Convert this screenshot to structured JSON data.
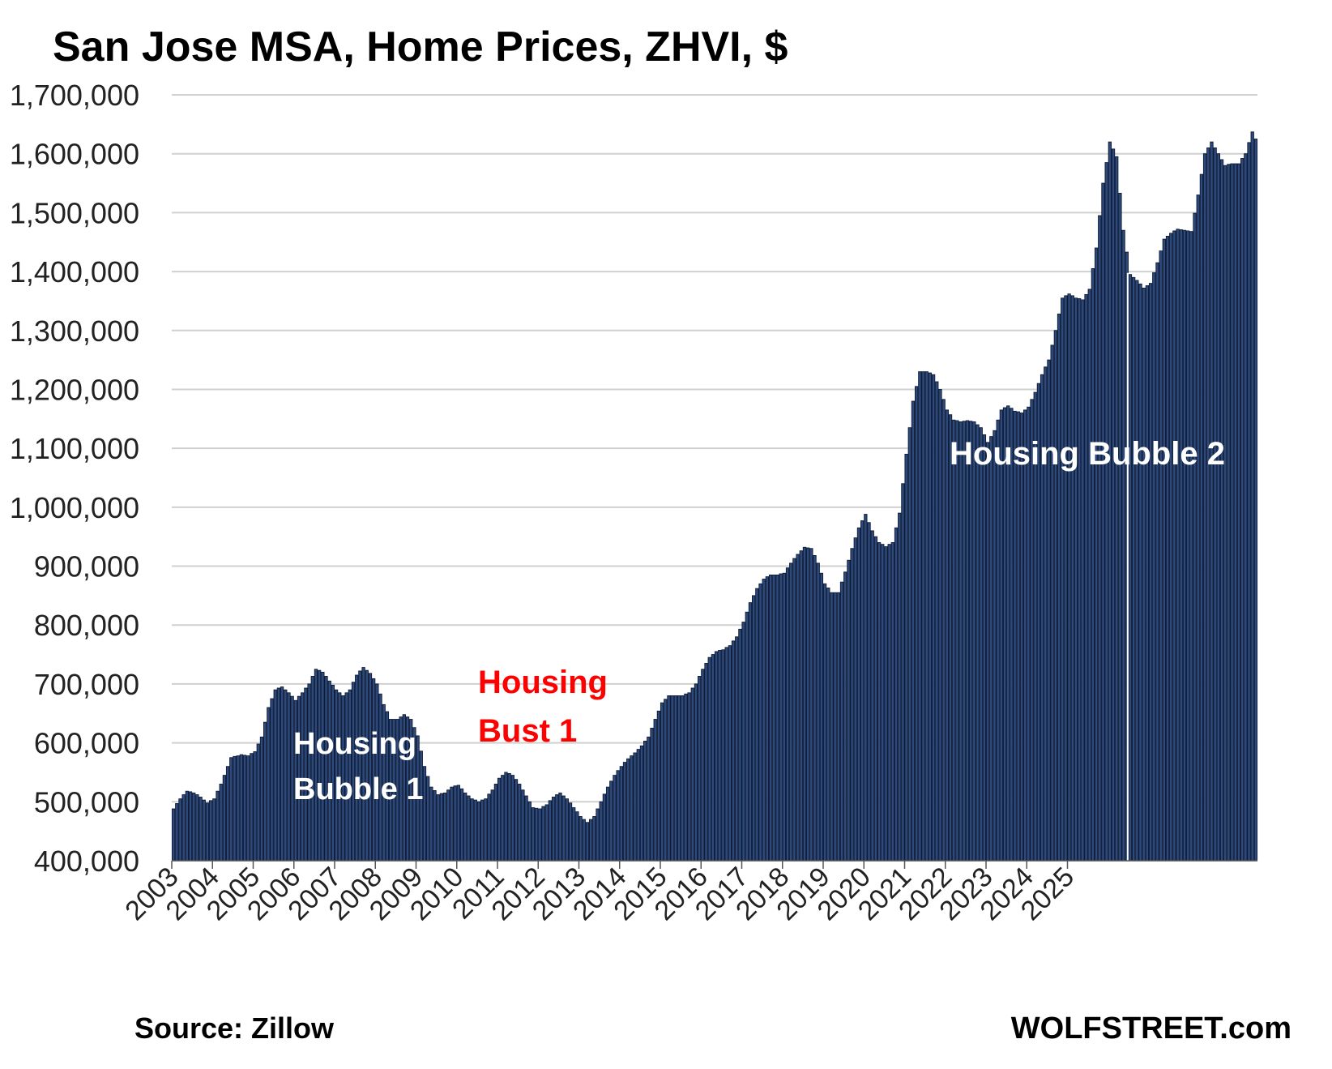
{
  "title": "San Jose MSA, Home Prices, ZHVI, $",
  "source": "Source: Zillow",
  "brand": "WOLFSTREET.com",
  "colors": {
    "bar_fill": "#2E4A7D",
    "bar_stroke": "#0d1a33",
    "grid": "#d0d0d0",
    "annotation_white": "#ffffff",
    "annotation_red": "#ff0000"
  },
  "chart_data": {
    "type": "bar",
    "title": "San Jose MSA, Home Prices, ZHVI, $",
    "frequency": "monthly",
    "start": "2003-01",
    "xlabel": "",
    "ylabel": "",
    "ylim": [
      400000,
      1700000
    ],
    "yticks": [
      "400,000",
      "500,000",
      "600,000",
      "700,000",
      "800,000",
      "900,000",
      "1,000,000",
      "1,100,000",
      "1,200,000",
      "1,300,000",
      "1,400,000",
      "1,500,000",
      "1,600,000",
      "1,700,000"
    ],
    "xticks": [
      "2003",
      "2004",
      "2005",
      "2006",
      "2007",
      "2008",
      "2009",
      "2010",
      "2011",
      "2012",
      "2013",
      "2014",
      "2015",
      "2016",
      "2017",
      "2018",
      "2019",
      "2020",
      "2021",
      "2022",
      "2023",
      "2024",
      "2025"
    ],
    "grid": true,
    "legend": "none",
    "anchors": [
      [
        0,
        488000
      ],
      [
        2,
        505000
      ],
      [
        4,
        518000
      ],
      [
        6,
        515000
      ],
      [
        8,
        508000
      ],
      [
        10,
        498000
      ],
      [
        12,
        505000
      ],
      [
        14,
        530000
      ],
      [
        17,
        575000
      ],
      [
        20,
        580000
      ],
      [
        22,
        578000
      ],
      [
        24,
        585000
      ],
      [
        26,
        610000
      ],
      [
        28,
        660000
      ],
      [
        30,
        690000
      ],
      [
        32,
        695000
      ],
      [
        34,
        685000
      ],
      [
        36,
        672000
      ],
      [
        38,
        685000
      ],
      [
        40,
        700000
      ],
      [
        42,
        725000
      ],
      [
        44,
        720000
      ],
      [
        46,
        705000
      ],
      [
        48,
        690000
      ],
      [
        50,
        680000
      ],
      [
        52,
        690000
      ],
      [
        54,
        715000
      ],
      [
        56,
        728000
      ],
      [
        58,
        718000
      ],
      [
        60,
        700000
      ],
      [
        62,
        665000
      ],
      [
        64,
        640000
      ],
      [
        66,
        640000
      ],
      [
        68,
        648000
      ],
      [
        70,
        640000
      ],
      [
        72,
        612000
      ],
      [
        74,
        560000
      ],
      [
        76,
        525000
      ],
      [
        78,
        512000
      ],
      [
        80,
        515000
      ],
      [
        82,
        525000
      ],
      [
        84,
        528000
      ],
      [
        86,
        515000
      ],
      [
        88,
        505000
      ],
      [
        90,
        500000
      ],
      [
        92,
        505000
      ],
      [
        94,
        520000
      ],
      [
        96,
        540000
      ],
      [
        98,
        550000
      ],
      [
        100,
        545000
      ],
      [
        102,
        530000
      ],
      [
        104,
        510000
      ],
      [
        106,
        490000
      ],
      [
        108,
        488000
      ],
      [
        110,
        495000
      ],
      [
        112,
        508000
      ],
      [
        114,
        515000
      ],
      [
        116,
        505000
      ],
      [
        118,
        490000
      ],
      [
        120,
        475000
      ],
      [
        122,
        465000
      ],
      [
        124,
        475000
      ],
      [
        126,
        500000
      ],
      [
        128,
        525000
      ],
      [
        130,
        545000
      ],
      [
        132,
        560000
      ],
      [
        134,
        573000
      ],
      [
        136,
        583000
      ],
      [
        138,
        595000
      ],
      [
        140,
        610000
      ],
      [
        142,
        640000
      ],
      [
        144,
        668000
      ],
      [
        146,
        680000
      ],
      [
        148,
        680000
      ],
      [
        150,
        680000
      ],
      [
        152,
        685000
      ],
      [
        154,
        700000
      ],
      [
        156,
        725000
      ],
      [
        158,
        745000
      ],
      [
        160,
        755000
      ],
      [
        162,
        758000
      ],
      [
        164,
        765000
      ],
      [
        166,
        780000
      ],
      [
        168,
        805000
      ],
      [
        170,
        838000
      ],
      [
        172,
        862000
      ],
      [
        174,
        878000
      ],
      [
        176,
        885000
      ],
      [
        178,
        885000
      ],
      [
        180,
        888000
      ],
      [
        182,
        905000
      ],
      [
        184,
        920000
      ],
      [
        186,
        932000
      ],
      [
        188,
        930000
      ],
      [
        190,
        905000
      ],
      [
        192,
        870000
      ],
      [
        194,
        855000
      ],
      [
        196,
        855000
      ],
      [
        198,
        890000
      ],
      [
        200,
        930000
      ],
      [
        202,
        965000
      ],
      [
        204,
        988000
      ],
      [
        206,
        960000
      ],
      [
        208,
        940000
      ],
      [
        210,
        933000
      ],
      [
        212,
        940000
      ],
      [
        214,
        990000
      ],
      [
        216,
        1090000
      ],
      [
        218,
        1180000
      ],
      [
        220,
        1230000
      ],
      [
        222,
        1230000
      ],
      [
        224,
        1225000
      ],
      [
        226,
        1200000
      ],
      [
        228,
        1165000
      ],
      [
        230,
        1148000
      ],
      [
        232,
        1145000
      ],
      [
        234,
        1147000
      ],
      [
        236,
        1145000
      ],
      [
        238,
        1135000
      ],
      [
        240,
        1110000
      ],
      [
        242,
        1130000
      ],
      [
        244,
        1165000
      ],
      [
        246,
        1172000
      ],
      [
        248,
        1163000
      ],
      [
        250,
        1160000
      ],
      [
        252,
        1170000
      ],
      [
        254,
        1195000
      ],
      [
        256,
        1225000
      ],
      [
        258,
        1250000
      ],
      [
        260,
        1300000
      ],
      [
        262,
        1355000
      ],
      [
        264,
        1362000
      ],
      [
        266,
        1355000
      ],
      [
        268,
        1352000
      ],
      [
        270,
        1370000
      ],
      [
        272,
        1440000
      ],
      [
        274,
        1550000
      ],
      [
        276,
        1620000
      ],
      [
        278,
        1595000
      ],
      [
        280,
        1470000
      ],
      [
        282,
        1395000
      ],
      [
        284,
        1385000
      ],
      [
        286,
        1372000
      ],
      [
        288,
        1380000
      ],
      [
        290,
        1415000
      ],
      [
        292,
        1455000
      ],
      [
        294,
        1465000
      ],
      [
        296,
        1472000
      ],
      [
        298,
        1470000
      ],
      [
        300,
        1468000
      ],
      [
        302,
        1530000
      ],
      [
        304,
        1600000
      ],
      [
        306,
        1620000
      ],
      [
        308,
        1600000
      ],
      [
        310,
        1580000
      ],
      [
        312,
        1583000
      ],
      [
        314,
        1583000
      ],
      [
        316,
        1600000
      ],
      [
        318,
        1637000
      ],
      [
        319,
        1625000
      ]
    ],
    "annotations": [
      {
        "text_lines": [
          "Housing",
          "Bubble 1"
        ],
        "color": "white"
      },
      {
        "text_lines": [
          "Housing",
          "Bust 1"
        ],
        "color": "red"
      },
      {
        "text_lines": [
          "Housing Bubble 2"
        ],
        "color": "white"
      }
    ]
  }
}
